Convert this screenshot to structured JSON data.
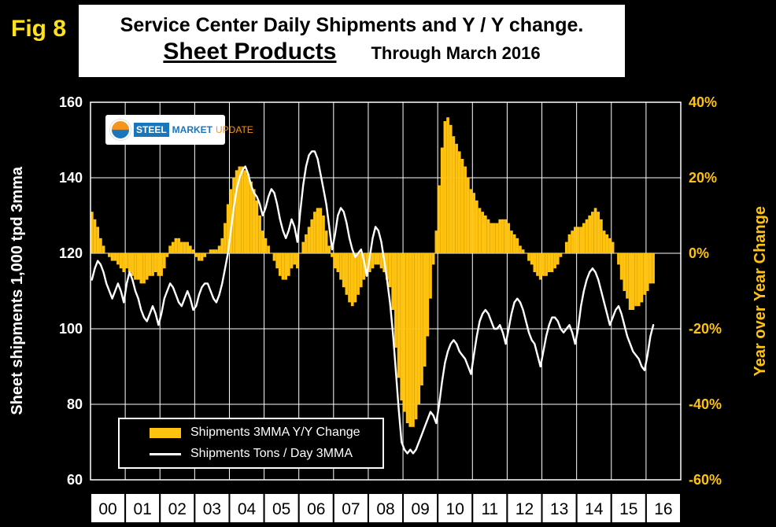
{
  "header": {
    "fig_label": "Fig 8",
    "title_line1": "Service Center Daily Shipments and Y / Y change.",
    "title_line2_main": "Sheet Products",
    "title_line2_sub": "Through March 2016"
  },
  "logo": {
    "word1": "STEEL",
    "word2": "MARKET",
    "word3": "UPDATE"
  },
  "left_axis_title": "Sheet shipments 1,000 tpd 3mma",
  "right_axis_title": "Year over Year Change",
  "legend": {
    "bars_label": "Shipments 3MMA Y/Y Change",
    "line_label": "Shipments Tons / Day 3MMA"
  },
  "colors": {
    "background": "#000000",
    "bars_gold": "#FFC20E",
    "line_white": "#FFFFFF",
    "grid_white": "#FFFFFF",
    "right_axis_gold": "#FFC20E",
    "fig_label_yellow": "#FFE11A",
    "strip_background": "#FFFFFF"
  },
  "chart_data": {
    "type": "combo-bar-line",
    "title": "Service Center Daily Shipments and Y / Y change. Sheet Products Through March 2016",
    "x_labels": [
      "00",
      "01",
      "02",
      "03",
      "04",
      "05",
      "06",
      "07",
      "08",
      "09",
      "10",
      "11",
      "12",
      "13",
      "14",
      "15",
      "16"
    ],
    "months_per_label": 12,
    "axis_months": 204,
    "data_months": 195,
    "left_axis": {
      "label": "Sheet shipments 1,000 tpd 3mma",
      "min": 60,
      "max": 160,
      "ticks": [
        160,
        140,
        120,
        100,
        80,
        60
      ]
    },
    "right_axis": {
      "label": "Year over Year Change",
      "min": -60,
      "max": 40,
      "ticks": [
        "40%",
        "20%",
        "0%",
        "-20%",
        "-40%",
        "-60%"
      ],
      "tick_values": [
        40,
        20,
        0,
        -20,
        -40,
        -60
      ]
    },
    "bar_baseline_left_value": 120,
    "units_per_percent": 1,
    "grid": true,
    "legend_position": "inside-bottom-left",
    "series": [
      {
        "name": "Shipments 3MMA Y/Y Change",
        "type": "bar",
        "axis": "right",
        "unit": "%",
        "color": "#FFC20E",
        "values": [
          11,
          9,
          7,
          4,
          2,
          0,
          -1,
          -2,
          -2,
          -3,
          -4,
          -5,
          -4,
          -5,
          -6,
          -7,
          -7,
          -8,
          -8,
          -7,
          -6,
          -6,
          -5,
          -6,
          -6,
          -4,
          -1,
          2,
          3,
          4,
          4,
          3,
          3,
          3,
          2,
          1,
          -1,
          -2,
          -2,
          -1,
          0,
          1,
          1,
          1,
          2,
          4,
          8,
          13,
          17,
          20,
          22,
          23,
          23,
          22,
          21,
          19,
          17,
          14,
          10,
          6,
          4,
          2,
          0,
          -2,
          -4,
          -6,
          -7,
          -7,
          -6,
          -4,
          -3,
          -4,
          0,
          3,
          5,
          7,
          9,
          11,
          12,
          12,
          10,
          6,
          2,
          -1,
          -4,
          -5,
          -7,
          -9,
          -11,
          -13,
          -14,
          -13,
          -11,
          -9,
          -7,
          -6,
          -5,
          -4,
          -3,
          -3,
          -4,
          -5,
          -7,
          -9,
          -15,
          -25,
          -33,
          -39,
          -42,
          -45,
          -46,
          -46,
          -44,
          -40,
          -35,
          -30,
          -22,
          -12,
          -3,
          6,
          18,
          28,
          35,
          36,
          34,
          31,
          29,
          27,
          25,
          23,
          20,
          17,
          16,
          14,
          12,
          11,
          10,
          9,
          8,
          8,
          8,
          9,
          9,
          9,
          8,
          6,
          5,
          4,
          2,
          1,
          0,
          -2,
          -3,
          -5,
          -6,
          -7,
          -6,
          -6,
          -5,
          -5,
          -4,
          -3,
          -1,
          0,
          3,
          5,
          6,
          7,
          7,
          7,
          8,
          9,
          10,
          11,
          12,
          11,
          9,
          6,
          5,
          4,
          3,
          0,
          -3,
          -7,
          -10,
          -12,
          -15,
          -15,
          -14,
          -14,
          -13,
          -11,
          -10,
          -8,
          -8
        ]
      },
      {
        "name": "Shipments Tons / Day 3MMA",
        "type": "line",
        "axis": "left",
        "unit": "1,000 tpd",
        "color": "#FFFFFF",
        "values": [
          113,
          116,
          118,
          117,
          115,
          112,
          110,
          108,
          110,
          112,
          110,
          107,
          112,
          115,
          113,
          110,
          108,
          105,
          103,
          102,
          104,
          106,
          104,
          101,
          104,
          108,
          110,
          112,
          111,
          109,
          107,
          106,
          108,
          110,
          108,
          105,
          106,
          109,
          111,
          112,
          112,
          110,
          108,
          107,
          109,
          112,
          116,
          120,
          126,
          132,
          137,
          140,
          142,
          143,
          141,
          138,
          136,
          135,
          133,
          130,
          132,
          135,
          137,
          136,
          133,
          129,
          126,
          124,
          126,
          129,
          127,
          123,
          131,
          138,
          143,
          146,
          147,
          147,
          145,
          141,
          137,
          133,
          127,
          121,
          125,
          130,
          132,
          131,
          128,
          124,
          121,
          119,
          120,
          121,
          118,
          114,
          119,
          124,
          127,
          126,
          123,
          118,
          113,
          107,
          99,
          89,
          79,
          70,
          68,
          67,
          68,
          67,
          68,
          70,
          72,
          74,
          76,
          78,
          77,
          75,
          80,
          86,
          91,
          94,
          96,
          97,
          96,
          94,
          93,
          92,
          90,
          88,
          93,
          98,
          102,
          104,
          105,
          104,
          102,
          100,
          100,
          101,
          99,
          96,
          100,
          104,
          107,
          108,
          107,
          105,
          102,
          99,
          97,
          96,
          93,
          90,
          94,
          98,
          101,
          103,
          103,
          102,
          100,
          99,
          100,
          101,
          99,
          96,
          100,
          106,
          110,
          113,
          115,
          116,
          115,
          113,
          110,
          107,
          104,
          101,
          103,
          105,
          106,
          104,
          101,
          98,
          96,
          94,
          93,
          92,
          90,
          89,
          93,
          98,
          101
        ]
      }
    ]
  }
}
